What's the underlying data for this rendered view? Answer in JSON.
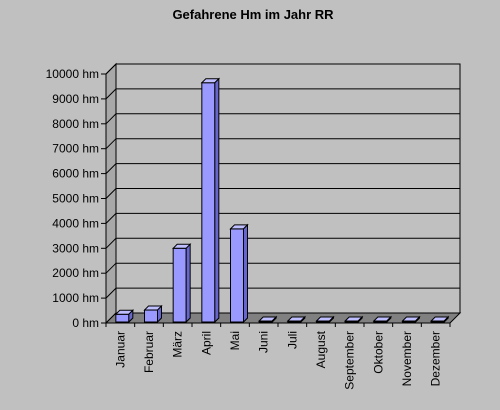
{
  "chart_data": {
    "type": "bar",
    "title": "Gefahrene Hm im Jahr RR",
    "xlabel": "",
    "ylabel": "",
    "unit": "hm",
    "categories": [
      "Januar",
      "Februar",
      "März",
      "April",
      "Mai",
      "Juni",
      "Juli",
      "August",
      "September",
      "Oktober",
      "November",
      "Dezember"
    ],
    "values": [
      350,
      520,
      3000,
      9650,
      3780,
      0,
      0,
      0,
      0,
      0,
      0,
      0
    ],
    "ylim": [
      0,
      10000
    ],
    "yticks": [
      {
        "value": 0,
        "label": "0 hm"
      },
      {
        "value": 1000,
        "label": "1000 hm"
      },
      {
        "value": 2000,
        "label": "2000 hm"
      },
      {
        "value": 3000,
        "label": "3000 hm"
      },
      {
        "value": 4000,
        "label": "4000 hm"
      },
      {
        "value": 5000,
        "label": "5000 hm"
      },
      {
        "value": 6000,
        "label": "6000 hm"
      },
      {
        "value": 7000,
        "label": "7000 hm"
      },
      {
        "value": 8000,
        "label": "8000 hm"
      },
      {
        "value": 9000,
        "label": "9000 hm"
      },
      {
        "value": 10000,
        "label": "10000 hm"
      }
    ],
    "grid": true,
    "legend": "none",
    "style": "3d",
    "colors": {
      "background": "#c0c0c0",
      "plot_back": "#c0c0c0",
      "wall_side": "#a8a8a8",
      "floor": "#808080",
      "bar_front": "#9999ff",
      "bar_top": "#bfbfff",
      "bar_side": "#6666cc",
      "grid": "#000000"
    }
  }
}
